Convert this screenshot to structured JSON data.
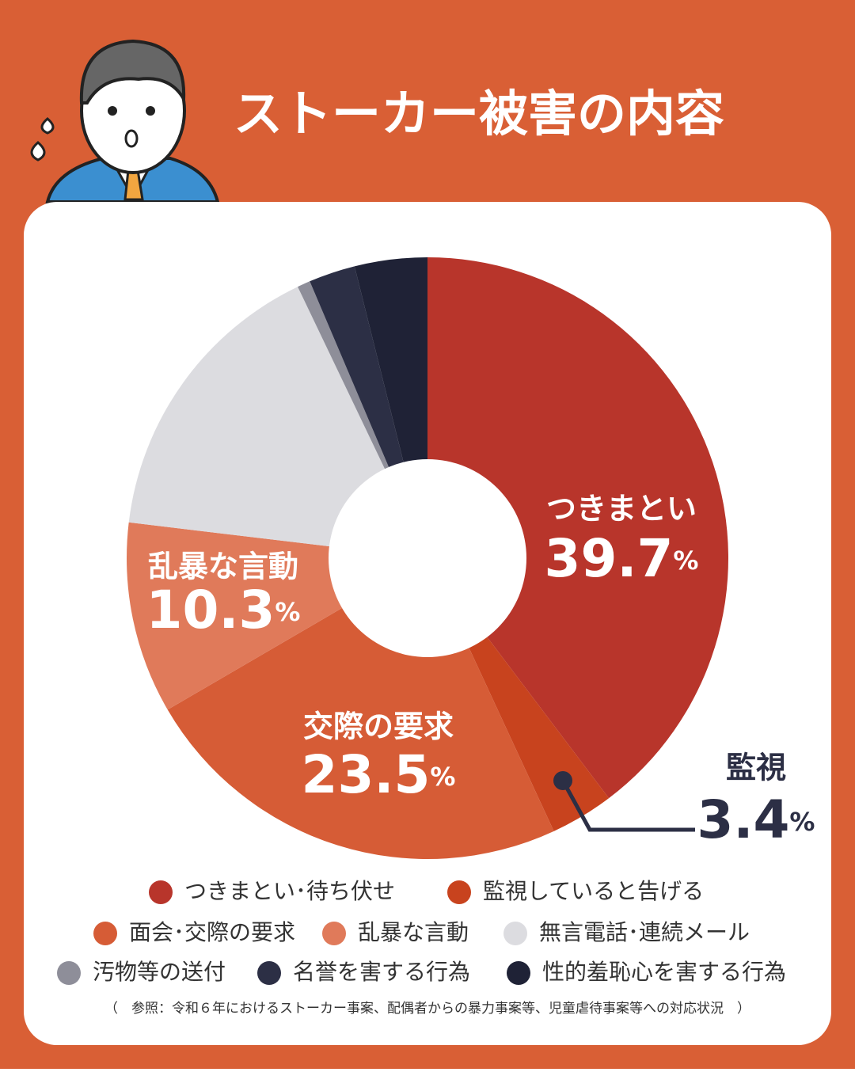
{
  "chart_data": {
    "type": "donut",
    "title": "ストーカー被害の内容",
    "categories": [
      "つきまとい･待ち伏せ",
      "監視していると告げる",
      "面会･交際の要求",
      "乱暴な言動",
      "無言電話･連続メール",
      "汚物等の送付",
      "名誉を害する行為",
      "性的羞恥心を害する行為"
    ],
    "short_labels": [
      "つきまとい",
      "監視",
      "交際の要求",
      "乱暴な言動",
      null,
      null,
      null,
      null
    ],
    "values": [
      39.7,
      3.4,
      23.5,
      10.3,
      16.0,
      0.7,
      2.5,
      3.9
    ],
    "unit": "%",
    "colors": [
      "#b8352b",
      "#c8431e",
      "#d65c36",
      "#e07a5a",
      "#dcdce0",
      "#8e8e99",
      "#2c2f45",
      "#1f2236"
    ],
    "source": "（　参照：令和６年におけるストーカー事案、配偶者からの暴力事案等、児童虐待事案等への対応状況　）"
  }
}
